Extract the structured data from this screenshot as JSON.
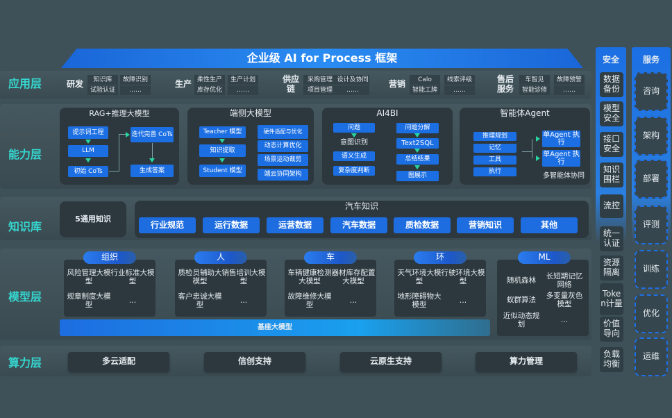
{
  "title": "企业级 AI for Process 框架",
  "layers": {
    "app": "应用层",
    "capability": "能力层",
    "knowledge": "知识库",
    "model": "模型层",
    "compute": "算力层"
  },
  "app": {
    "groups": [
      {
        "name": "研发",
        "items": [
          "知识库",
          "故障识别",
          "试验认证",
          "……"
        ]
      },
      {
        "name": "生产",
        "items": [
          "柔性生产",
          "生产计划",
          "库存优化",
          "……"
        ]
      },
      {
        "name": "供应链",
        "items": [
          "采购管理",
          "设计及协同",
          "项目管理",
          "……"
        ]
      },
      {
        "name": "营销",
        "items": [
          "Calo",
          "线索评级",
          "智能工牌",
          "……"
        ]
      },
      {
        "name": "售后服务",
        "items": [
          "车智见",
          "故障预警",
          "智能诊修",
          "……"
        ]
      }
    ]
  },
  "capability": {
    "rag": {
      "title": "RAG+推理大模型",
      "items": [
        "提示词工程",
        "LLM",
        "初始 CoTs",
        "迭代完善 CoTs",
        "生成答案"
      ]
    },
    "edge": {
      "title": "端侧大模型",
      "items": [
        "Teacher 模型",
        "知识提取",
        "Student 模型",
        "硬件适配与优化",
        "动态计算优化",
        "场景运动裁剪",
        "端云协同架构"
      ]
    },
    "ai4bi": {
      "title": "AI4BI",
      "items": [
        "问题",
        "意图识别",
        "语义生成",
        "复杂度判断",
        "问题分解",
        "Text2SQL",
        "总结结果",
        "图展示"
      ]
    },
    "agent": {
      "title": "智能体Agent",
      "items": [
        "推理规划",
        "记忆",
        "工具",
        "执行",
        "单Agent 执行",
        "单Agent 执行",
        "多智能体协同"
      ]
    }
  },
  "knowledge": {
    "general": "5通用知识",
    "auto_title": "汽车知识",
    "items": [
      "行业规范",
      "运行数据",
      "运营数据",
      "汽车数据",
      "质检数据",
      "营销知识",
      "其他"
    ]
  },
  "model": {
    "groups": [
      {
        "name": "组织",
        "items": [
          "风险管理大模型",
          "行业标准大模型",
          "规章制度大模型",
          "…"
        ]
      },
      {
        "name": "人",
        "items": [
          "质检员辅助大模型",
          "销售培训大模型",
          "客户忠诚大模型",
          "…"
        ]
      },
      {
        "name": "车",
        "items": [
          "车辆健康检测大模型",
          "器材库存配置大模型",
          "故障维修大模型",
          "…"
        ]
      },
      {
        "name": "环",
        "items": [
          "天气环境大模型",
          "行驶环境大模型",
          "地形障碍物大模型",
          "…"
        ]
      },
      {
        "name": "ML",
        "items": [
          "随机森林",
          "长短期记忆网络",
          "蚁群算法",
          "多变量灰色模型",
          "近似动态规划",
          "…"
        ]
      }
    ],
    "base": "基座大模型"
  },
  "compute": {
    "items": [
      "多云适配",
      "信创支持",
      "云原生支持",
      "算力管理"
    ]
  },
  "security": {
    "title": "安全",
    "items": [
      "数据备份",
      "模型安全",
      "接口安全",
      "知识围栏",
      "流控",
      "统一认证",
      "资源隔离",
      "Token计量",
      "价值导向",
      "负载均衡"
    ]
  },
  "services": {
    "title": "服务",
    "items": [
      "咨询",
      "架构",
      "部署",
      "评测",
      "训练",
      "优化",
      "运维"
    ]
  },
  "colors": {
    "background": "#3e5058",
    "accent_blue": "#1c6fe3",
    "layer_label": "#35d6cf",
    "arrow": "#27d6a0"
  }
}
